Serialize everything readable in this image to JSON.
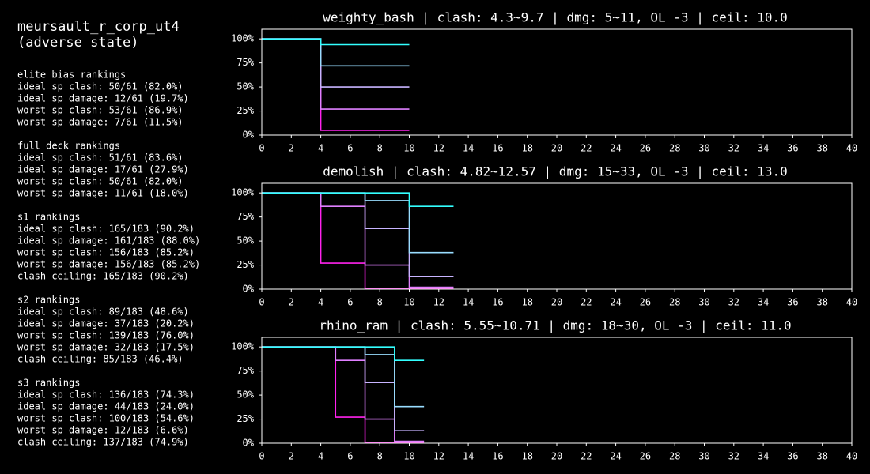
{
  "panel": {
    "title": [
      "meursault_r_corp_ut4",
      "(adverse state)"
    ],
    "sections": [
      {
        "heading": "elite bias rankings",
        "lines": [
          "ideal sp clash: 50/61 (82.0%)",
          "ideal sp damage: 12/61 (19.7%)",
          "worst sp clash: 53/61 (86.9%)",
          "worst sp damage: 7/61 (11.5%)"
        ]
      },
      {
        "heading": "full deck rankings",
        "lines": [
          "ideal sp clash: 51/61 (83.6%)",
          "ideal sp damage: 17/61 (27.9%)",
          "worst sp clash: 50/61 (82.0%)",
          "worst sp damage: 11/61 (18.0%)"
        ]
      },
      {
        "heading": "s1 rankings",
        "lines": [
          "ideal sp clash: 165/183 (90.2%)",
          "ideal sp damage: 161/183 (88.0%)",
          "worst sp clash: 156/183 (85.2%)",
          "worst sp damage: 156/183 (85.2%)",
          "clash ceiling: 165/183 (90.2%)"
        ]
      },
      {
        "heading": "s2 rankings",
        "lines": [
          "ideal sp clash: 89/183 (48.6%)",
          "ideal sp damage: 37/183 (20.2%)",
          "worst sp clash: 139/183 (76.0%)",
          "worst sp damage: 32/183 (17.5%)",
          "clash ceiling: 85/183 (46.4%)"
        ]
      },
      {
        "heading": "s3 rankings",
        "lines": [
          "ideal sp clash: 136/183 (74.3%)",
          "ideal sp damage: 44/183 (24.0%)",
          "worst sp clash: 100/183 (54.6%)",
          "worst sp damage: 12/183 (6.6%)",
          "clash ceiling: 137/183 (74.9%)"
        ]
      }
    ]
  },
  "chart_data": [
    {
      "type": "line",
      "step": "post",
      "title": "weighty_bash | clash: 4.3~9.7 | dmg: 5~11, OL -3 | ceil: 10.0",
      "xlim": [
        0,
        40
      ],
      "ylim": [
        0,
        110
      ],
      "xticks": [
        0,
        2,
        4,
        6,
        8,
        10,
        12,
        14,
        16,
        18,
        20,
        22,
        24,
        26,
        28,
        30,
        32,
        34,
        36,
        38,
        40
      ],
      "yticks": [
        {
          "value": 0,
          "label": "0%"
        },
        {
          "value": 25,
          "label": "25%"
        },
        {
          "value": 50,
          "label": "50%"
        },
        {
          "value": 75,
          "label": "75%"
        },
        {
          "value": 100,
          "label": "100%"
        }
      ],
      "series": [
        {
          "color": "#ff22ee",
          "x": [
            0,
            4,
            10
          ],
          "values": [
            100,
            5,
            5
          ]
        },
        {
          "color": "#e080ff",
          "x": [
            0,
            4,
            10
          ],
          "values": [
            100,
            27,
            27
          ]
        },
        {
          "color": "#c8b4ff",
          "x": [
            0,
            4,
            10
          ],
          "values": [
            100,
            50,
            50
          ]
        },
        {
          "color": "#99ddff",
          "x": [
            0,
            4,
            10
          ],
          "values": [
            100,
            72,
            72
          ]
        },
        {
          "color": "#33ffff",
          "x": [
            0,
            4,
            10
          ],
          "values": [
            100,
            94,
            94
          ]
        }
      ]
    },
    {
      "type": "line",
      "step": "post",
      "title": "demolish | clash: 4.82~12.57 | dmg: 15~33, OL -3 | ceil: 13.0",
      "xlim": [
        0,
        40
      ],
      "ylim": [
        0,
        110
      ],
      "xticks": [
        0,
        2,
        4,
        6,
        8,
        10,
        12,
        14,
        16,
        18,
        20,
        22,
        24,
        26,
        28,
        30,
        32,
        34,
        36,
        38,
        40
      ],
      "yticks": [
        {
          "value": 0,
          "label": "0%"
        },
        {
          "value": 25,
          "label": "25%"
        },
        {
          "value": 50,
          "label": "50%"
        },
        {
          "value": 75,
          "label": "75%"
        },
        {
          "value": 100,
          "label": "100%"
        }
      ],
      "series": [
        {
          "color": "#ff22ee",
          "x": [
            0,
            4,
            7,
            13
          ],
          "values": [
            100,
            27,
            1,
            1
          ]
        },
        {
          "color": "#e080ff",
          "x": [
            0,
            4,
            7,
            10,
            13
          ],
          "values": [
            100,
            86,
            25,
            2,
            2
          ]
        },
        {
          "color": "#c8b4ff",
          "x": [
            0,
            7,
            10,
            13
          ],
          "values": [
            100,
            63,
            13,
            13
          ]
        },
        {
          "color": "#99ddff",
          "x": [
            0,
            7,
            10,
            13
          ],
          "values": [
            100,
            92,
            38,
            38
          ]
        },
        {
          "color": "#33ffff",
          "x": [
            0,
            10,
            13
          ],
          "values": [
            100,
            86,
            86
          ]
        }
      ]
    },
    {
      "type": "line",
      "step": "post",
      "title": "rhino_ram | clash: 5.55~10.71 | dmg: 18~30, OL -3 | ceil: 11.0",
      "xlim": [
        0,
        40
      ],
      "ylim": [
        0,
        110
      ],
      "xticks": [
        0,
        2,
        4,
        6,
        8,
        10,
        12,
        14,
        16,
        18,
        20,
        22,
        24,
        26,
        28,
        30,
        32,
        34,
        36,
        38,
        40
      ],
      "yticks": [
        {
          "value": 0,
          "label": "0%"
        },
        {
          "value": 25,
          "label": "25%"
        },
        {
          "value": 50,
          "label": "50%"
        },
        {
          "value": 75,
          "label": "75%"
        },
        {
          "value": 100,
          "label": "100%"
        }
      ],
      "series": [
        {
          "color": "#ff22ee",
          "x": [
            0,
            5,
            7,
            11
          ],
          "values": [
            100,
            27,
            1,
            1
          ]
        },
        {
          "color": "#e080ff",
          "x": [
            0,
            5,
            7,
            9,
            11
          ],
          "values": [
            100,
            86,
            25,
            2,
            2
          ]
        },
        {
          "color": "#c8b4ff",
          "x": [
            0,
            7,
            9,
            11
          ],
          "values": [
            100,
            63,
            13,
            13
          ]
        },
        {
          "color": "#99ddff",
          "x": [
            0,
            7,
            9,
            11
          ],
          "values": [
            100,
            92,
            38,
            38
          ]
        },
        {
          "color": "#33ffff",
          "x": [
            0,
            9,
            11
          ],
          "values": [
            100,
            86,
            86
          ]
        }
      ]
    }
  ]
}
